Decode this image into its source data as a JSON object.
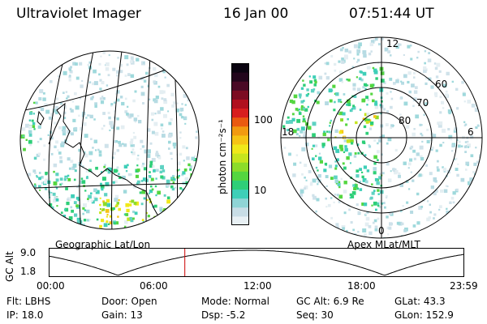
{
  "header": {
    "instrument": "Ultraviolet Imager",
    "date": "16 Jan 00",
    "time": "07:51:44 UT"
  },
  "geo_panel": {
    "label": "Geographic Lat/Lon"
  },
  "polar_panel": {
    "label": "Apex MLat/MLT",
    "mlt_labels": [
      "12",
      "18",
      "6",
      "0"
    ],
    "lat_labels": [
      "60",
      "70",
      "80"
    ]
  },
  "colorbar": {
    "unit_label": "photon cm⁻²s⁻¹",
    "tick_labels": [
      "100",
      "10"
    ],
    "colors": [
      "#e8f0f4",
      "#c8dde6",
      "#8fd4d6",
      "#3fcfb8",
      "#2ecf78",
      "#54d640",
      "#8cdc2a",
      "#c6e51e",
      "#f0e81a",
      "#f6c415",
      "#f29a10",
      "#ea5a10",
      "#d81e1e",
      "#b0101e",
      "#7c0c22",
      "#4a0a26",
      "#22061c",
      "#0a0410"
    ]
  },
  "alt_plot": {
    "ylabel": "GC Alt",
    "y_ticks": [
      "9.0",
      "1.8"
    ],
    "x_ticks": [
      "00:00",
      "06:00",
      "12:00",
      "18:00",
      "23:59"
    ],
    "current_time_hours": 7.86,
    "marker_color": "#cc0000"
  },
  "info": {
    "flt": "Flt: LBHS",
    "door": "Door: Open",
    "mode": "Mode: Normal",
    "gc_alt": "GC Alt: 6.9 Re",
    "glat": "GLat:  43.3",
    "ip": "IP: 18.0",
    "gain": "Gain: 13",
    "dsp": "Dsp:   -5.2",
    "seq": "Seq: 30",
    "glon": "GLon: 152.9"
  }
}
